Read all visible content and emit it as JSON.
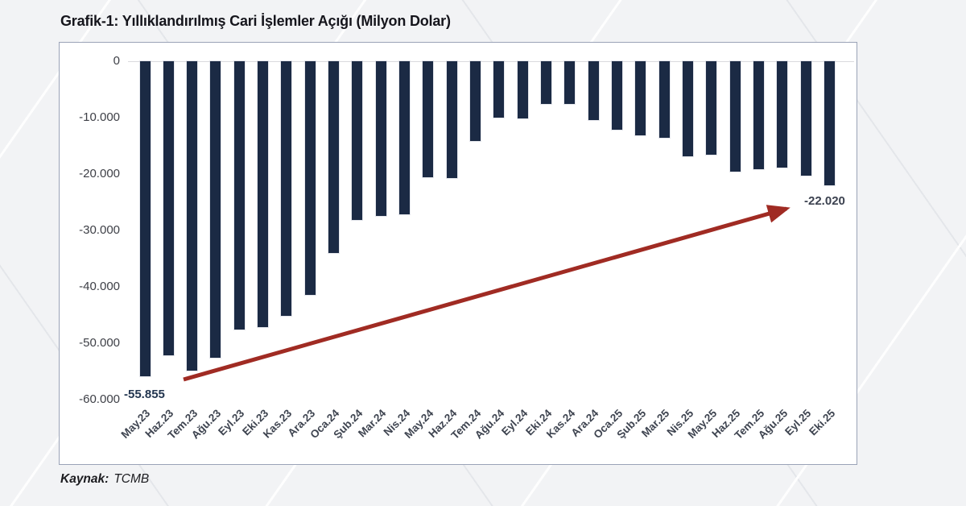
{
  "page": {
    "title": "Grafik-1: Yıllıklandırılmış Cari İşlemler Açığı (Milyon Dolar)",
    "source_label": "Kaynak:",
    "source_value": "TCMB"
  },
  "chart_data": {
    "type": "bar",
    "title": "Grafik-1: Yıllıklandırılmış Cari İşlemler Açığı (Milyon Dolar)",
    "unit": "Milyon Dolar",
    "xlabel": "",
    "ylabel": "",
    "ylim": [
      -60000,
      0
    ],
    "grid": "zero-line-only",
    "legend": "none",
    "categories": [
      "May.23",
      "Haz.23",
      "Tem.23",
      "Ağu.23",
      "Eyl.23",
      "Eki.23",
      "Kas.23",
      "Ara.23",
      "Oca.24",
      "Şub.24",
      "Mar.24",
      "Nis.24",
      "May.24",
      "Haz.24",
      "Tem.24",
      "Ağu.24",
      "Eyl.24",
      "Eki.24",
      "Kas.24",
      "Ara.24",
      "Oca.25",
      "Şub.25",
      "Mar.25",
      "Nis.25",
      "May.25",
      "Haz.25",
      "Tem.25",
      "Ağu.25",
      "Eyl.25",
      "Eki.25"
    ],
    "values": [
      -55855,
      -52100,
      -54800,
      -52600,
      -47600,
      -47100,
      -45200,
      -41400,
      -34000,
      -28200,
      -27400,
      -27100,
      -20600,
      -20700,
      -14200,
      -10000,
      -10200,
      -7600,
      -7500,
      -10400,
      -12200,
      -13100,
      -13500,
      -16800,
      -16600,
      -19500,
      -19200,
      -18800,
      -20300,
      -22020
    ],
    "y_ticks": [
      "0",
      "-10.000",
      "-20.000",
      "-30.000",
      "-40.000",
      "-50.000",
      "-60.000"
    ],
    "y_tick_values": [
      0,
      -10000,
      -20000,
      -30000,
      -40000,
      -50000,
      -60000
    ],
    "annotations": [
      {
        "text": "-55.855",
        "target": "May.23",
        "value": -55855
      },
      {
        "text": "-22.020",
        "target": "Eki.25",
        "value": -22020
      }
    ],
    "colors": {
      "bar": "#1b2a44",
      "arrow": "#a02b23",
      "first_label": "#233650",
      "last_label": "#3c4250"
    }
  }
}
